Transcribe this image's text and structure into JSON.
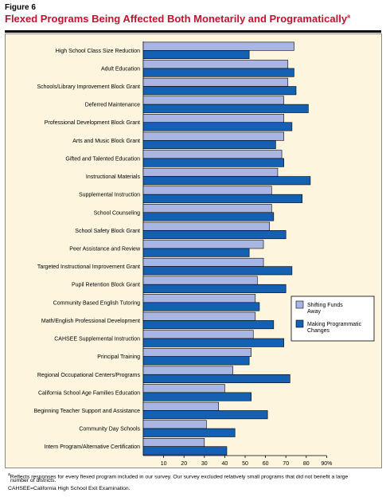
{
  "figure_label": "Figure 6",
  "title": "Flexed Programs Being Affected Both Monetarily and Programatically",
  "title_marker": "a",
  "footnotes": {
    "marker": "a",
    "line1": "Reflects responses for every flexed program included in our survey. Our survey excluded relatively small programs that did not benefit a large",
    "line2": "number of districts.",
    "line3": "CAHSEE=California High School Exit Examination."
  },
  "colors": {
    "title": "#c8102e",
    "shifting": "#a9b6e4",
    "making": "#1461b3",
    "background": "#fdf5de"
  },
  "chart_data": {
    "type": "bar",
    "orientation": "horizontal",
    "categories": [
      "High School Class Size Reduction",
      "Adult Education",
      "Schools/Library Improvement Block Grant",
      "Deferred Maintenance",
      "Professional Development Block Grant",
      "Arts and Music Block Grant",
      "Gifted and Talented Education",
      "Instructional Materials",
      "Supplemental Instruction",
      "School Counseling",
      "School Safety Block Grant",
      "Peer Assistance and Review",
      "Targeted Instructional Improvement Grant",
      "Pupil Retention Block Grant",
      "Community Based English Tutoring",
      "Math/English Professional Development",
      "CAHSEE Supplemental Instruction",
      "Principal Training",
      "Regional Occupational Centers/Programs",
      "California School Age Families Education",
      "Beginning Teacher Support and Assistance",
      "Community Day Schools",
      "Intern Program/Alternative Certification"
    ],
    "series": [
      {
        "name": "Shifting Funds Away",
        "values": [
          74,
          71,
          71,
          69,
          69,
          69,
          68,
          66,
          63,
          63,
          62,
          59,
          59,
          56,
          55,
          55,
          54,
          53,
          44,
          40,
          37,
          31,
          30
        ]
      },
      {
        "name": "Making Programmatic Changes",
        "values": [
          52,
          74,
          75,
          81,
          73,
          65,
          69,
          82,
          78,
          64,
          70,
          52,
          73,
          70,
          57,
          64,
          69,
          52,
          72,
          53,
          61,
          45,
          41
        ]
      }
    ],
    "x_ticks": [
      "10",
      "20",
      "30",
      "40",
      "50",
      "60",
      "70",
      "80",
      "90%"
    ],
    "xlim": [
      0,
      90
    ],
    "legend_position": "right"
  }
}
